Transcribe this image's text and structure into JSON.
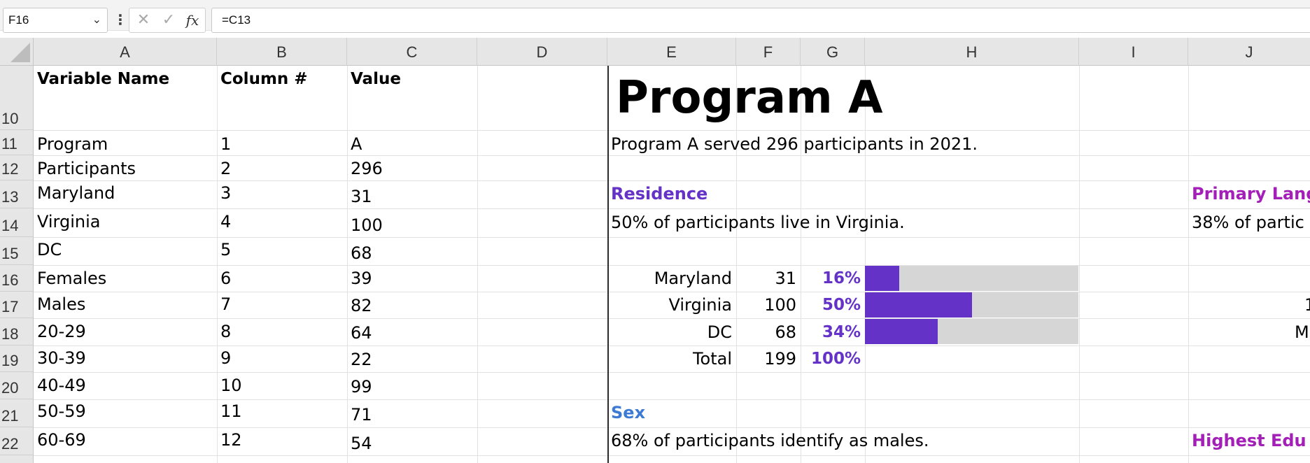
{
  "formula_bar": {
    "name_box": "F16",
    "formula": "=C13",
    "fx_label": "fx"
  },
  "columns": [
    "A",
    "B",
    "C",
    "D",
    "E",
    "F",
    "G",
    "H",
    "I",
    "J"
  ],
  "rows": [
    "10",
    "11",
    "12",
    "13",
    "14",
    "15",
    "16",
    "17",
    "18",
    "19",
    "20",
    "21",
    "22"
  ],
  "variables_table": {
    "headers": {
      "name": "Variable Name",
      "column": "Column #",
      "value": "Value"
    },
    "rows": [
      {
        "name": "Program",
        "column": "1",
        "value": "A"
      },
      {
        "name": "Participants",
        "column": "2",
        "value": "296"
      },
      {
        "name": "Maryland",
        "column": "3",
        "value": "31"
      },
      {
        "name": "Virginia",
        "column": "4",
        "value": "100"
      },
      {
        "name": "DC",
        "column": "5",
        "value": "68"
      },
      {
        "name": "Females",
        "column": "6",
        "value": "39"
      },
      {
        "name": "Males",
        "column": "7",
        "value": "82"
      },
      {
        "name": "20-29",
        "column": "8",
        "value": "64"
      },
      {
        "name": "30-39",
        "column": "9",
        "value": "22"
      },
      {
        "name": "40-49",
        "column": "10",
        "value": "99"
      },
      {
        "name": "50-59",
        "column": "11",
        "value": "71"
      },
      {
        "name": "60-69",
        "column": "12",
        "value": "54"
      }
    ]
  },
  "report": {
    "title": "Program A",
    "summary": "Program A served 296 participants in 2021.",
    "residence": {
      "heading": "Residence",
      "sentence": "50% of participants live in Virginia.",
      "rows": [
        {
          "label": "Maryland",
          "count": "31",
          "pct": "16%",
          "fraction": 0.16
        },
        {
          "label": "Virginia",
          "count": "100",
          "pct": "50%",
          "fraction": 0.5
        },
        {
          "label": "DC",
          "count": "68",
          "pct": "34%",
          "fraction": 0.34
        }
      ],
      "total": {
        "label": "Total",
        "count": "199",
        "pct": "100%"
      }
    },
    "sex": {
      "heading": "Sex",
      "sentence": "68% of participants identify as males."
    },
    "primary_language": {
      "heading": "Primary Lang",
      "sentence": "38% of partic"
    },
    "highest_education": {
      "heading": "Highest Edu"
    },
    "j_col_fragments": [
      "1",
      "M"
    ]
  },
  "colors": {
    "accent_purple": "#6532c8",
    "accent_magenta": "#a31fb8",
    "accent_blue": "#3d7ad3",
    "bar_track": "#d6d6d6"
  }
}
